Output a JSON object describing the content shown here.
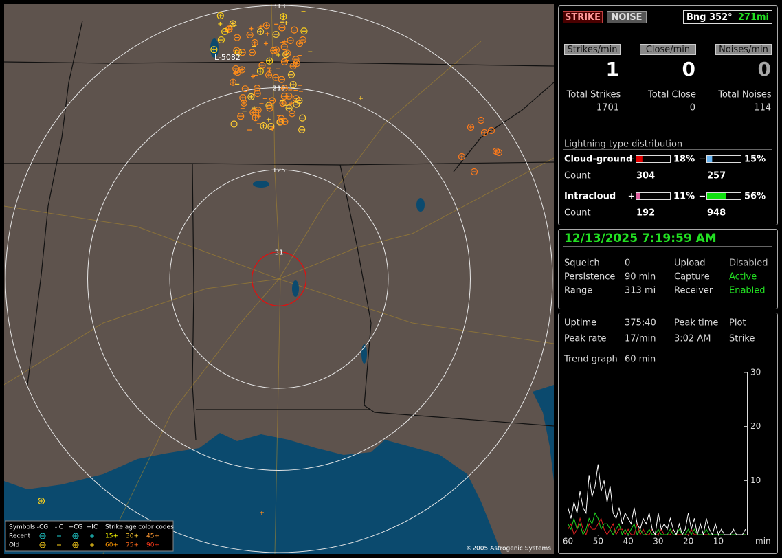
{
  "map": {
    "range_rings": [
      31,
      125,
      219,
      313
    ],
    "marker_label": "L-5082",
    "copyright": "©2005 Astrogenic Systems",
    "legend": {
      "symbols_label": "Symbols",
      "symbol_headers": [
        "-CG",
        "-IC",
        "+CG",
        "+IC"
      ],
      "age_label": "Strike age color codes",
      "rows": [
        {
          "label": "Recent",
          "ages": [
            "15+",
            "30+",
            "45+"
          ]
        },
        {
          "label": "Old",
          "ages": [
            "60+",
            "75+",
            "90+"
          ]
        }
      ]
    }
  },
  "header": {
    "strike": "STRIKE",
    "noise": "NOISE",
    "bearing": "Bng 352°",
    "distance": "271mi"
  },
  "rates": [
    {
      "label": "Strikes/min",
      "value": 1,
      "total_label": "Total Strikes",
      "total": 1701
    },
    {
      "label": "Close/min",
      "value": 0,
      "total_label": "Total Close",
      "total": 0
    },
    {
      "label": "Noises/min",
      "value": 0,
      "total_label": "Total Noises",
      "total": 114
    }
  ],
  "distribution": {
    "title": "Lightning type distribution",
    "count_label": "Count",
    "rows": [
      {
        "name": "Cloud-ground",
        "parts": [
          {
            "sign": "+",
            "value": 18,
            "value_label": "18%",
            "count": 304,
            "color": "#e00000"
          },
          {
            "sign": "−",
            "value": 15,
            "value_label": "15%",
            "count": 257,
            "color": "#6ab4f0"
          }
        ]
      },
      {
        "name": "Intracloud",
        "parts": [
          {
            "sign": "+",
            "value": 11,
            "value_label": "11%",
            "count": 192,
            "color": "#e060a0"
          },
          {
            "sign": "−",
            "value": 56,
            "value_label": "56%",
            "count": 948,
            "color": "#10e010"
          }
        ]
      }
    ]
  },
  "status": {
    "datetime": "12/13/2025 7:19:59 AM",
    "rows": [
      [
        "Squelch",
        "0",
        "Upload",
        "Disabled"
      ],
      [
        "Persistence",
        "90 min",
        "Capture",
        "Active"
      ],
      [
        "Range",
        "313 mi",
        "Receiver",
        "Enabled"
      ]
    ]
  },
  "stats": {
    "rows": [
      [
        "Uptime",
        "375:40",
        "Peak time",
        "Plot"
      ],
      [
        "Peak rate",
        "17/min",
        "3:02 AM",
        "Strike"
      ],
      [
        "Trend graph",
        "60 min"
      ]
    ]
  },
  "trend_chart": {
    "type": "line",
    "x": [
      60,
      59,
      58,
      57,
      56,
      55,
      54,
      53,
      52,
      51,
      50,
      49,
      48,
      47,
      46,
      45,
      44,
      43,
      42,
      41,
      40,
      39,
      38,
      37,
      36,
      35,
      34,
      33,
      32,
      31,
      30,
      29,
      28,
      27,
      26,
      25,
      24,
      23,
      22,
      21,
      20,
      19,
      18,
      17,
      16,
      15,
      14,
      13,
      12,
      11,
      10,
      9,
      8,
      7,
      6,
      5,
      4,
      3,
      2,
      1
    ],
    "xlim": [
      61.5,
      0.5
    ],
    "ylim": [
      0,
      30
    ],
    "xticks": [
      60,
      50,
      40,
      30,
      20,
      10
    ],
    "yticks": [
      10,
      20,
      30
    ],
    "x_unit": "min",
    "series": [
      {
        "color": "#ffffff",
        "values": [
          5,
          3,
          6,
          4,
          8,
          5,
          4,
          11,
          7,
          9,
          13,
          8,
          10,
          6,
          9,
          4,
          3,
          5,
          2,
          4,
          3,
          2,
          5,
          2,
          1,
          3,
          2,
          4,
          1,
          0,
          4,
          1,
          2,
          1,
          3,
          1,
          0,
          2,
          0,
          1,
          4,
          1,
          3,
          0,
          2,
          0,
          3,
          1,
          0,
          2,
          0,
          1,
          0,
          0,
          0,
          1,
          0,
          0,
          0,
          1
        ]
      },
      {
        "color": "#20d020",
        "values": [
          2,
          1,
          3,
          1,
          2,
          0,
          1,
          3,
          2,
          4,
          3,
          1,
          2,
          2,
          1,
          0,
          1,
          2,
          0,
          1,
          0,
          1,
          2,
          0,
          1,
          0,
          0,
          1,
          0,
          0,
          1,
          0,
          0,
          0,
          1,
          0,
          0,
          1,
          0,
          0,
          1,
          0,
          1,
          0,
          0,
          0,
          1,
          0,
          0,
          0,
          0,
          0,
          0,
          0,
          0,
          0,
          0,
          0,
          0,
          0
        ]
      },
      {
        "color": "#e02020",
        "values": [
          1,
          2,
          0,
          1,
          3,
          1,
          0,
          2,
          1,
          1,
          2,
          3,
          1,
          0,
          1,
          2,
          0,
          1,
          1,
          0,
          1,
          0,
          0,
          2,
          0,
          1,
          0,
          0,
          1,
          0,
          0,
          1,
          0,
          0,
          0,
          1,
          0,
          0,
          0,
          0,
          0,
          1,
          0,
          0,
          0,
          0,
          0,
          0,
          0,
          0,
          0,
          0,
          0,
          0,
          0,
          0,
          0,
          0,
          0,
          0
        ]
      }
    ]
  }
}
